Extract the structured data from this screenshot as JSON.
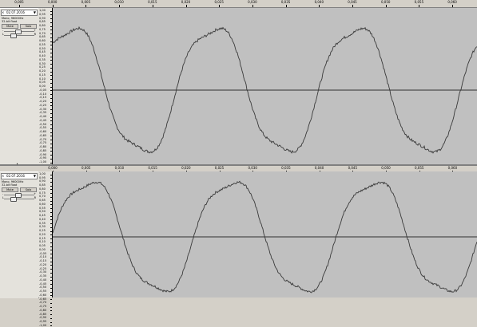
{
  "top_ruler": {
    "ticks": [
      "0,005",
      "0,000",
      "0,005",
      "0,010",
      "0,015",
      "0,020",
      "0,025",
      "0,030",
      "0,035",
      "0,040",
      "0,045",
      "0,050",
      "0,055",
      "0,060"
    ]
  },
  "mid_ruler": {
    "ticks": [
      "0,000",
      "0,005",
      "0,010",
      "0,015",
      "0,020",
      "0,025",
      "0,030",
      "0,035",
      "0,040",
      "0,045",
      "0,050",
      "0,055",
      "0,060"
    ]
  },
  "track1": {
    "title": "02.07.2016",
    "close": "×",
    "menu": "▼",
    "info1": "Mono, 96000Hz",
    "info2": "32-bit float",
    "mute": "Mute",
    "solo": "Solo",
    "gain_minus": "-",
    "gain_plus": "+",
    "pan_l": "L",
    "pan_r": "R",
    "scale": [
      "1,00",
      "0,95",
      "0,90",
      "0,85",
      "0,80",
      "0,75",
      "0,70",
      "0,65",
      "0,60",
      "0,55",
      "0,50",
      "0,45",
      "0,40",
      "0,35",
      "0,30",
      "0,25",
      "0,20",
      "0,15",
      "0,10",
      "0,05",
      "0,00",
      "-0,05",
      "-0,10",
      "-0,15",
      "-0,20",
      "-0,25",
      "-0,30",
      "-0,35",
      "-0,40",
      "-0,45",
      "-0,50",
      "-0,55",
      "-0,60",
      "-0,65",
      "-0,70",
      "-0,75",
      "-0,80",
      "-0,85",
      "-0,90",
      "-0,95",
      "-1,00"
    ]
  },
  "track2": {
    "title": "02.07.2016",
    "close": "×",
    "menu": "▼",
    "info1": "Mono, 96000Hz",
    "info2": "32-bit float",
    "mute": "Mute",
    "solo": "Solo",
    "gain_minus": "-",
    "gain_plus": "+",
    "pan_l": "L",
    "pan_r": "R",
    "scale": [
      "1,00",
      "0,95",
      "0,90",
      "0,85",
      "0,80",
      "0,75",
      "0,70",
      "0,65",
      "0,60",
      "0,55",
      "0,50",
      "0,45",
      "0,40",
      "0,35",
      "0,30",
      "0,25",
      "0,20",
      "0,15",
      "0,10",
      "0,05",
      "0,00",
      "-0,05",
      "-0,10",
      "-0,15",
      "-0,20",
      "-0,25",
      "-0,30",
      "-0,35",
      "-0,40",
      "-0,45",
      "-0,50",
      "-0,55",
      "-0,60",
      "-0,65",
      "-0,70",
      "-0,75",
      "-0,80",
      "-0,85",
      "-0,90",
      "-0,95",
      "-1,00"
    ]
  },
  "collapse_arrow": "▲",
  "colors": {
    "wave_bg": "#c0c0c0",
    "wave_line": "#3a3a3a",
    "zero_line": "#000000"
  }
}
